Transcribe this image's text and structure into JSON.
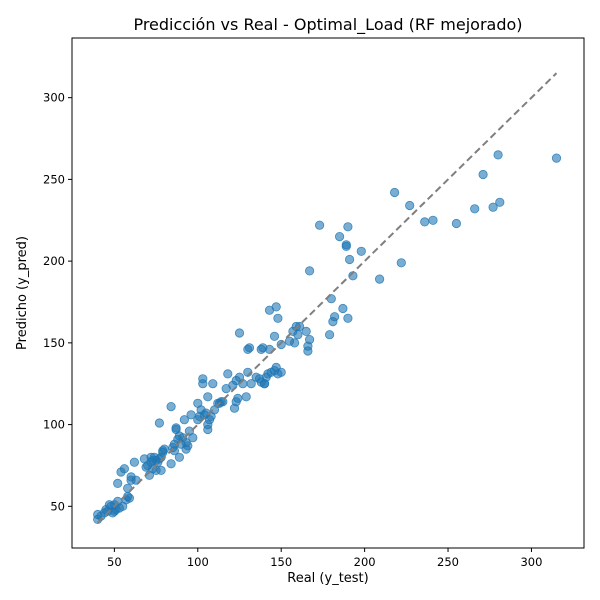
{
  "chart_data": {
    "type": "scatter",
    "title": "Predicción vs Real - Optimal_Load (RF mejorado)",
    "xlabel": "Real (y_test)",
    "ylabel": "Predicho (y_pred)",
    "xlim": [
      24.6,
      331.5
    ],
    "ylim": [
      24.5,
      336.5
    ],
    "x_ticks": [
      50,
      100,
      150,
      200,
      250,
      300
    ],
    "y_ticks": [
      50,
      100,
      150,
      200,
      250,
      300
    ],
    "grid": false,
    "legend": "none",
    "point_color": "#1f77b4",
    "point_alpha": 0.6,
    "reference_line": {
      "from": [
        40,
        40
      ],
      "to": [
        315,
        315
      ],
      "color": "#7f7f7f",
      "style": "dashed"
    },
    "points": [
      [
        40,
        42
      ],
      [
        40,
        45
      ],
      [
        42,
        44
      ],
      [
        44,
        46
      ],
      [
        45,
        48
      ],
      [
        46,
        47
      ],
      [
        47,
        51
      ],
      [
        48,
        50
      ],
      [
        49,
        46
      ],
      [
        50,
        47
      ],
      [
        50,
        51
      ],
      [
        51,
        48
      ],
      [
        52,
        64
      ],
      [
        52,
        53
      ],
      [
        53,
        49
      ],
      [
        54,
        71
      ],
      [
        55,
        50
      ],
      [
        56,
        73
      ],
      [
        57,
        54
      ],
      [
        58,
        61
      ],
      [
        58,
        56
      ],
      [
        59,
        55
      ],
      [
        60,
        68
      ],
      [
        60,
        66
      ],
      [
        62,
        77
      ],
      [
        63,
        66
      ],
      [
        68,
        79
      ],
      [
        69,
        74
      ],
      [
        70,
        75
      ],
      [
        71,
        69
      ],
      [
        72,
        80
      ],
      [
        72,
        77
      ],
      [
        73,
        73
      ],
      [
        73,
        78
      ],
      [
        74,
        80
      ],
      [
        75,
        72
      ],
      [
        75,
        78
      ],
      [
        76,
        77
      ],
      [
        77,
        101
      ],
      [
        77,
        79
      ],
      [
        78,
        80
      ],
      [
        78,
        72
      ],
      [
        79,
        83
      ],
      [
        79,
        84
      ],
      [
        80,
        85
      ],
      [
        84,
        76
      ],
      [
        84,
        111
      ],
      [
        85,
        86
      ],
      [
        86,
        88
      ],
      [
        86,
        84
      ],
      [
        87,
        98
      ],
      [
        87,
        97
      ],
      [
        88,
        91
      ],
      [
        89,
        80
      ],
      [
        89,
        93
      ],
      [
        90,
        88
      ],
      [
        91,
        92
      ],
      [
        92,
        103
      ],
      [
        93,
        89
      ],
      [
        93,
        85
      ],
      [
        94,
        87
      ],
      [
        95,
        96
      ],
      [
        96,
        106
      ],
      [
        97,
        92
      ],
      [
        100,
        103
      ],
      [
        100,
        113
      ],
      [
        101,
        105
      ],
      [
        102,
        109
      ],
      [
        103,
        125
      ],
      [
        103,
        128
      ],
      [
        104,
        106
      ],
      [
        105,
        107
      ],
      [
        106,
        97
      ],
      [
        106,
        100
      ],
      [
        106,
        117
      ],
      [
        107,
        103
      ],
      [
        108,
        105
      ],
      [
        109,
        125
      ],
      [
        110,
        109
      ],
      [
        112,
        113
      ],
      [
        113,
        113
      ],
      [
        114,
        114
      ],
      [
        115,
        114
      ],
      [
        117,
        122
      ],
      [
        118,
        131
      ],
      [
        121,
        124
      ],
      [
        122,
        110
      ],
      [
        123,
        127
      ],
      [
        123,
        114
      ],
      [
        124,
        116
      ],
      [
        125,
        129
      ],
      [
        125,
        156
      ],
      [
        127,
        125
      ],
      [
        129,
        117
      ],
      [
        130,
        146
      ],
      [
        130,
        132
      ],
      [
        131,
        147
      ],
      [
        132,
        125
      ],
      [
        135,
        129
      ],
      [
        137,
        128
      ],
      [
        138,
        126
      ],
      [
        138,
        146
      ],
      [
        139,
        147
      ],
      [
        140,
        125
      ],
      [
        140,
        125
      ],
      [
        141,
        129
      ],
      [
        142,
        131
      ],
      [
        143,
        170
      ],
      [
        143,
        146
      ],
      [
        144,
        132
      ],
      [
        146,
        154
      ],
      [
        146,
        133
      ],
      [
        147,
        172
      ],
      [
        147,
        135
      ],
      [
        148,
        165
      ],
      [
        148,
        131
      ],
      [
        150,
        149
      ],
      [
        150,
        132
      ],
      [
        155,
        151
      ],
      [
        157,
        157
      ],
      [
        158,
        150
      ],
      [
        159,
        160
      ],
      [
        160,
        155
      ],
      [
        161,
        160
      ],
      [
        165,
        157
      ],
      [
        166,
        145
      ],
      [
        166,
        148
      ],
      [
        167,
        194
      ],
      [
        167,
        152
      ],
      [
        173,
        222
      ],
      [
        179,
        155
      ],
      [
        180,
        177
      ],
      [
        181,
        163
      ],
      [
        182,
        166
      ],
      [
        185,
        215
      ],
      [
        187,
        171
      ],
      [
        189,
        209
      ],
      [
        189,
        210
      ],
      [
        190,
        165
      ],
      [
        190,
        221
      ],
      [
        191,
        201
      ],
      [
        193,
        191
      ],
      [
        198,
        206
      ],
      [
        209,
        189
      ],
      [
        218,
        242
      ],
      [
        222,
        199
      ],
      [
        227,
        234
      ],
      [
        236,
        224
      ],
      [
        241,
        225
      ],
      [
        255,
        223
      ],
      [
        266,
        232
      ],
      [
        271,
        253
      ],
      [
        277,
        233
      ],
      [
        280,
        265
      ],
      [
        281,
        236
      ],
      [
        315,
        263
      ]
    ]
  }
}
